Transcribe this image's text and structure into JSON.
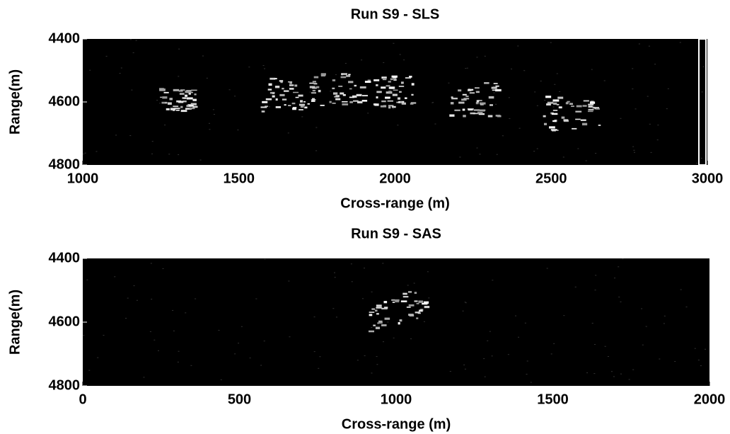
{
  "chart_data": [
    {
      "type": "image",
      "title": "Run S9 - SLS",
      "x_label": "Cross-range (m)",
      "y_label": "Range(m)",
      "xlim": [
        1000,
        3000
      ],
      "ylim": [
        4400,
        4800
      ],
      "y_reversed": true,
      "xticks": [
        1000,
        1500,
        2000,
        2500,
        3000
      ],
      "yticks": [
        4400,
        4600,
        4800
      ],
      "x": [
        1300,
        1650,
        1820,
        1990,
        2250,
        2560
      ],
      "y": [
        4590,
        4575,
        4560,
        4565,
        4590,
        4635
      ]
    },
    {
      "type": "image",
      "title": "Run S9 - SAS",
      "x_label": "Cross-range (m)",
      "y_label": "Range(m)",
      "xlim": [
        0,
        2000
      ],
      "ylim": [
        4400,
        4800
      ],
      "y_reversed": true,
      "xticks": [
        0,
        500,
        1000,
        1500,
        2000
      ],
      "yticks": [
        4400,
        4600,
        4800
      ],
      "x": [
        1000
      ],
      "y": [
        4560
      ]
    }
  ]
}
